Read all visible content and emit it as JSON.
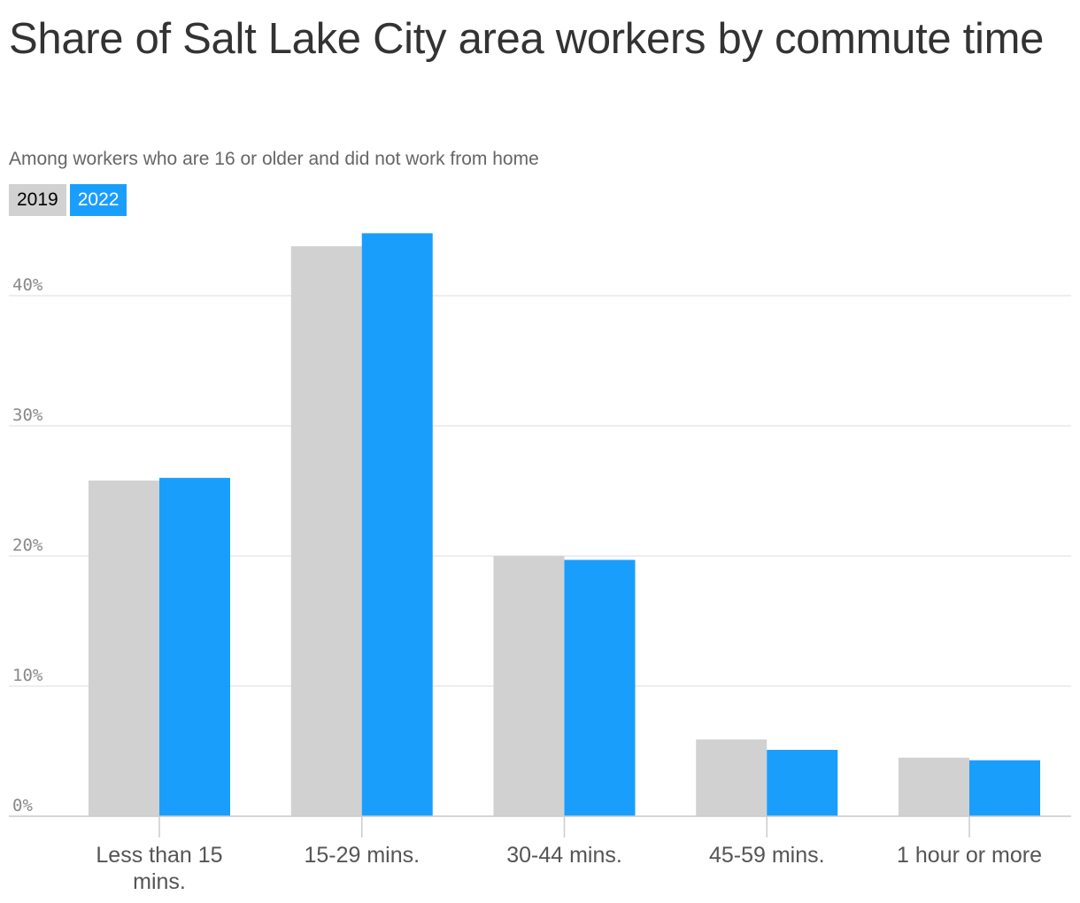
{
  "chart_data": {
    "type": "bar",
    "title": "Share of Salt Lake City area workers by commute time",
    "subtitle": "Among workers who are 16 or older and did not work from home",
    "categories": [
      "Less than 15 mins.",
      "15-29 mins.",
      "30-44 mins.",
      "45-59 mins.",
      "1 hour or more"
    ],
    "category_lines": [
      [
        "Less than 15",
        "mins."
      ],
      [
        "15-29 mins."
      ],
      [
        "30-44 mins."
      ],
      [
        "45-59 mins."
      ],
      [
        "1 hour or more"
      ]
    ],
    "series": [
      {
        "name": "2019",
        "color": "#d1d1d1",
        "text_color": "#000000",
        "values": [
          25.8,
          43.8,
          20.0,
          5.9,
          4.5
        ]
      },
      {
        "name": "2022",
        "color": "#1a9efc",
        "text_color": "#ffffff",
        "values": [
          26.0,
          44.8,
          19.7,
          5.1,
          4.3
        ]
      }
    ],
    "ylim": [
      0,
      45
    ],
    "yticks": [
      0,
      10,
      20,
      30,
      40
    ],
    "ytick_labels": [
      "0%",
      "10%",
      "20%",
      "30%",
      "40%"
    ],
    "xlabel": "",
    "ylabel": "",
    "grid": true,
    "legend_position": "top-left"
  }
}
